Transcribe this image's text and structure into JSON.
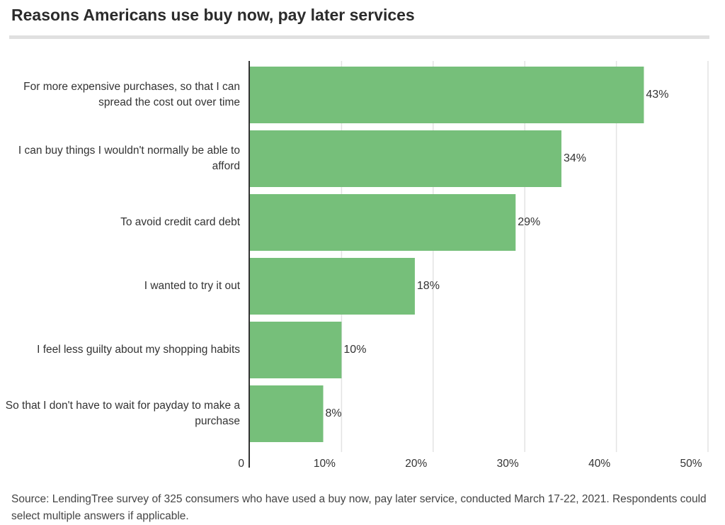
{
  "chart_data": {
    "type": "bar",
    "orientation": "horizontal",
    "title": "Reasons Americans use buy now, pay later services",
    "categories": [
      "For more expensive purchases, so that I can spread the cost out over time",
      "I can buy things I wouldn't normally be able to afford",
      "To avoid credit card debt",
      "I wanted to try it out",
      "I feel less guilty about my shopping habits",
      "So that I don't have to wait for payday to make a purchase"
    ],
    "values": [
      43,
      34,
      29,
      18,
      10,
      8
    ],
    "value_labels": [
      "43%",
      "34%",
      "29%",
      "18%",
      "10%",
      "8%"
    ],
    "xlim": [
      0,
      50
    ],
    "ticks": [
      0,
      10,
      20,
      30,
      40,
      50
    ],
    "tick_labels": [
      "0",
      "10%",
      "20%",
      "30%",
      "40%",
      "50%"
    ],
    "grid": true,
    "bar_color": "#76bf7a",
    "source": "Source: LendingTree survey of 325 consumers who have used a buy now, pay later service, conducted March 17-22, 2021. Respondents could select multiple answers if applicable."
  }
}
